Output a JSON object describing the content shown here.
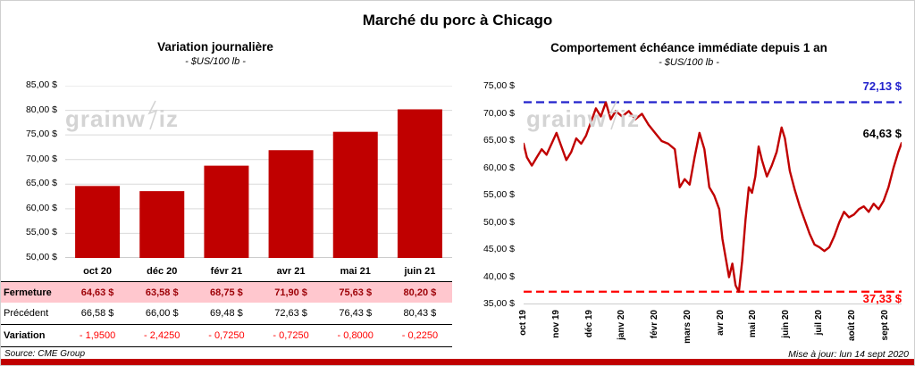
{
  "header": {
    "title": "Marché du porc à Chicago"
  },
  "footer": {
    "source": "Source: CME Group",
    "updated": "Mise à jour: lun 14 sept 2020"
  },
  "watermark": {
    "text": "grainwiz"
  },
  "colors": {
    "accent_red": "#C00000",
    "variation_red": "#FF0000",
    "fermeture_text": "#9C0006",
    "fermeture_bg": "#FFC7CE",
    "high_blue": "#2222CC"
  },
  "left_panel": {
    "title": "Variation journalière",
    "subtitle": "- $US/100 lb -",
    "y_tick_labels": [
      "85,00 $",
      "80,00 $",
      "75,00 $",
      "70,00 $",
      "65,00 $",
      "60,00 $",
      "55,00 $",
      "50,00 $"
    ],
    "table": {
      "row_labels": [
        "Fermeture",
        "Précédent",
        "Variation"
      ],
      "fermeture": [
        "64,63 $",
        "63,58 $",
        "68,75 $",
        "71,90 $",
        "75,63 $",
        "80,20 $"
      ],
      "precedent": [
        "66,58 $",
        "66,00 $",
        "69,48 $",
        "72,63 $",
        "76,43 $",
        "80,43 $"
      ],
      "variation": [
        "- 1,9500",
        "- 2,4250",
        "- 0,7250",
        "- 0,7250",
        "- 0,8000",
        "- 0,2250"
      ]
    }
  },
  "right_panel": {
    "title": "Comportement échéance immédiate depuis 1 an",
    "subtitle": "- $US/100 lb -",
    "y_tick_labels": [
      "75,00 $",
      "70,00 $",
      "65,00 $",
      "60,00 $",
      "55,00 $",
      "50,00 $",
      "45,00 $",
      "40,00 $",
      "35,00 $"
    ],
    "high_label": "72,13 $",
    "last_label": "64,63 $",
    "low_label": "37,33 $"
  },
  "chart_data": [
    {
      "type": "bar",
      "title": "Variation journalière",
      "subtitle": "- $US/100 lb -",
      "categories": [
        "oct 20",
        "déc 20",
        "févr 21",
        "avr 21",
        "mai 21",
        "juin 21"
      ],
      "values": [
        64.63,
        63.58,
        68.75,
        71.9,
        75.63,
        80.2
      ],
      "ylabel": "$US/100 lb",
      "ylim": [
        50,
        85
      ],
      "ytick_step": 5,
      "grid": true,
      "bar_color": "#C00000"
    },
    {
      "type": "line",
      "title": "Comportement échéance immédiate depuis 1 an",
      "subtitle": "- $US/100 lb -",
      "x_tick_labels": [
        "oct 19",
        "nov 19",
        "déc 19",
        "janv 20",
        "févr 20",
        "mars 20",
        "avr 20",
        "mai 20",
        "juin 20",
        "juil 20",
        "août 20",
        "sept 20"
      ],
      "xlim": [
        0,
        11.5
      ],
      "ylim": [
        35,
        75
      ],
      "ytick_step": 5,
      "grid": false,
      "line_color": "#C00000",
      "x": [
        0,
        0.1,
        0.25,
        0.4,
        0.55,
        0.7,
        0.85,
        1.0,
        1.15,
        1.3,
        1.45,
        1.6,
        1.75,
        1.9,
        2.05,
        2.2,
        2.35,
        2.5,
        2.65,
        2.8,
        3.0,
        3.2,
        3.4,
        3.6,
        3.8,
        4.0,
        4.2,
        4.4,
        4.6,
        4.75,
        4.9,
        5.05,
        5.2,
        5.35,
        5.5,
        5.65,
        5.8,
        5.95,
        6.05,
        6.15,
        6.25,
        6.35,
        6.45,
        6.55,
        6.65,
        6.75,
        6.85,
        6.95,
        7.05,
        7.15,
        7.25,
        7.4,
        7.55,
        7.7,
        7.85,
        7.95,
        8.1,
        8.25,
        8.4,
        8.55,
        8.7,
        8.85,
        9.0,
        9.15,
        9.3,
        9.45,
        9.6,
        9.75,
        9.9,
        10.05,
        10.2,
        10.35,
        10.5,
        10.65,
        10.8,
        10.95,
        11.1,
        11.25,
        11.4,
        11.5
      ],
      "values": [
        64.5,
        62.0,
        60.5,
        62.0,
        63.5,
        62.5,
        64.5,
        66.5,
        64.0,
        61.5,
        63.0,
        65.5,
        64.5,
        66.0,
        68.5,
        71.0,
        69.5,
        72.1,
        69.0,
        70.5,
        69.5,
        70.5,
        69.0,
        70.0,
        68.0,
        66.5,
        65.0,
        64.5,
        63.5,
        56.5,
        58.0,
        57.0,
        62.0,
        66.5,
        63.5,
        56.5,
        55.0,
        52.5,
        47.0,
        43.5,
        40.0,
        42.5,
        38.5,
        37.33,
        43.0,
        50.5,
        56.5,
        55.5,
        58.5,
        64.0,
        61.5,
        58.5,
        60.5,
        63.0,
        67.5,
        65.5,
        59.5,
        56.0,
        53.0,
        50.5,
        48.0,
        46.0,
        45.5,
        44.8,
        45.5,
        47.5,
        50.0,
        52.0,
        51.0,
        51.5,
        52.5,
        53.0,
        52.0,
        53.5,
        52.5,
        54.0,
        56.5,
        60.0,
        63.0,
        64.63
      ],
      "last_value": 64.63,
      "reference_lines": [
        {
          "value": 72.13,
          "label": "72,13 $",
          "color": "#2222CC",
          "style": "dashed"
        },
        {
          "value": 37.33,
          "label": "37,33 $",
          "color": "#FF0000",
          "style": "dashed"
        }
      ]
    }
  ]
}
